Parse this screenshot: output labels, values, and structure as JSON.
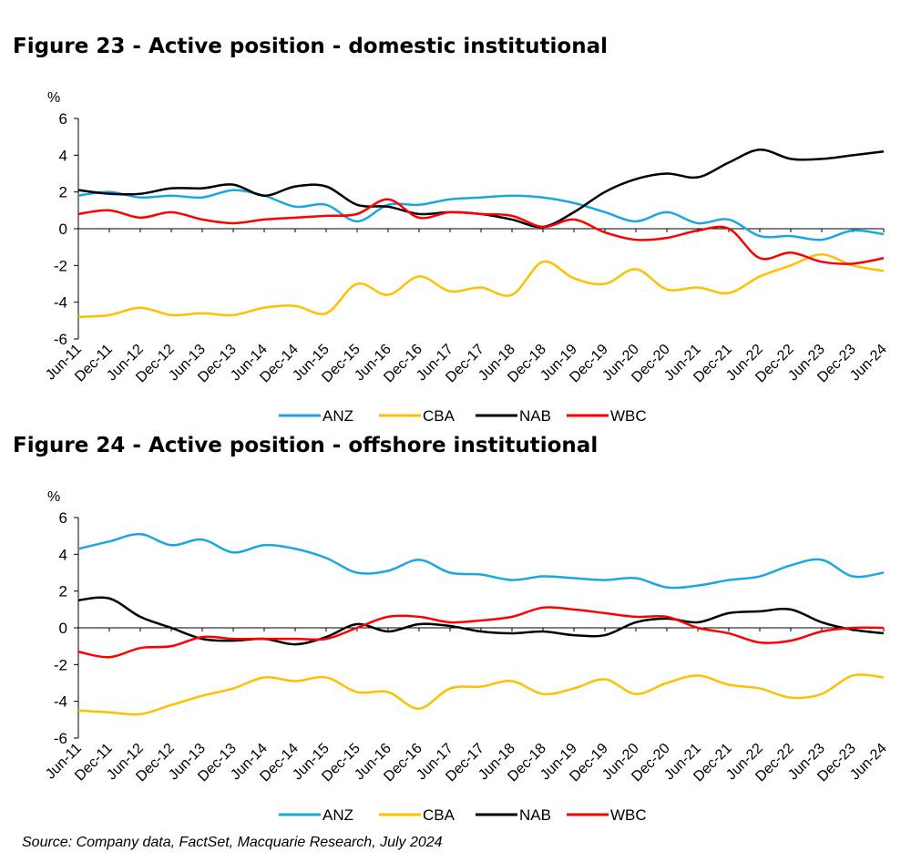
{
  "chart_data": [
    {
      "type": "line",
      "title": "Figure 23 - Active position - domestic institutional",
      "ylabel": "%",
      "ylim": [
        -6,
        6
      ],
      "yticks": [
        6,
        4,
        2,
        0,
        -2,
        -4,
        -6
      ],
      "x_labels": [
        "Jun-11",
        "Dec-11",
        "Jun-12",
        "Dec-12",
        "Jun-13",
        "Dec-13",
        "Jun-14",
        "Dec-14",
        "Jun-15",
        "Dec-15",
        "Jun-16",
        "Dec-16",
        "Jun-17",
        "Dec-17",
        "Jun-18",
        "Dec-18",
        "Jun-19",
        "Dec-19",
        "Jun-20",
        "Dec-20",
        "Jun-21",
        "Dec-21",
        "Jun-22",
        "Dec-22",
        "Jun-23",
        "Dec-23",
        "Jun-24"
      ],
      "legend_position": "bottom",
      "grid": false,
      "series": [
        {
          "name": "ANZ",
          "color": "#1aa7e0",
          "values": [
            1.8,
            2.0,
            1.7,
            1.8,
            1.7,
            2.1,
            1.8,
            1.2,
            1.3,
            0.4,
            1.3,
            1.3,
            1.6,
            1.7,
            1.8,
            1.7,
            1.4,
            0.9,
            0.4,
            0.9,
            0.3,
            0.5,
            -0.4,
            -0.4,
            -0.6,
            -0.1,
            -0.3
          ]
        },
        {
          "name": "CBA",
          "color": "#ffc000",
          "values": [
            -4.8,
            -4.7,
            -4.3,
            -4.7,
            -4.6,
            -4.7,
            -4.3,
            -4.2,
            -4.6,
            -3.0,
            -3.6,
            -2.6,
            -3.4,
            -3.2,
            -3.6,
            -1.8,
            -2.7,
            -3.0,
            -2.2,
            -3.3,
            -3.2,
            -3.5,
            -2.6,
            -2.0,
            -1.4,
            -2.0,
            -2.3
          ]
        },
        {
          "name": "NAB",
          "color": "#000000",
          "values": [
            2.1,
            1.9,
            1.9,
            2.2,
            2.2,
            2.4,
            1.8,
            2.3,
            2.3,
            1.3,
            1.2,
            0.8,
            0.9,
            0.8,
            0.5,
            0.1,
            0.9,
            2.0,
            2.7,
            3.0,
            2.8,
            3.6,
            4.3,
            3.8,
            3.8,
            4.0,
            4.2
          ]
        },
        {
          "name": "WBC",
          "color": "#ff0000",
          "values": [
            0.8,
            1.0,
            0.6,
            0.9,
            0.5,
            0.3,
            0.5,
            0.6,
            0.7,
            0.8,
            1.6,
            0.6,
            0.9,
            0.8,
            0.7,
            0.1,
            0.5,
            -0.2,
            -0.6,
            -0.5,
            -0.1,
            0.0,
            -1.6,
            -1.3,
            -1.8,
            -1.9,
            -1.6
          ]
        }
      ]
    },
    {
      "type": "line",
      "title": "Figure 24 - Active position - offshore institutional",
      "ylabel": "%",
      "ylim": [
        -6,
        6
      ],
      "yticks": [
        6,
        4,
        2,
        0,
        -2,
        -4,
        -6
      ],
      "x_labels": [
        "Jun-11",
        "Dec-11",
        "Jun-12",
        "Dec-12",
        "Jun-13",
        "Dec-13",
        "Jun-14",
        "Dec-14",
        "Jun-15",
        "Dec-15",
        "Jun-16",
        "Dec-16",
        "Jun-17",
        "Dec-17",
        "Jun-18",
        "Dec-18",
        "Jun-19",
        "Dec-19",
        "Jun-20",
        "Dec-20",
        "Jun-21",
        "Dec-21",
        "Jun-22",
        "Dec-22",
        "Jun-23",
        "Dec-23",
        "Jun-24"
      ],
      "legend_position": "bottom",
      "grid": false,
      "series": [
        {
          "name": "ANZ",
          "color": "#1aa7e0",
          "values": [
            4.3,
            4.7,
            5.1,
            4.5,
            4.8,
            4.1,
            4.5,
            4.3,
            3.8,
            3.0,
            3.1,
            3.7,
            3.0,
            2.9,
            2.6,
            2.8,
            2.7,
            2.6,
            2.7,
            2.2,
            2.3,
            2.6,
            2.8,
            3.4,
            3.7,
            2.8,
            3.0
          ]
        },
        {
          "name": "CBA",
          "color": "#ffc000",
          "values": [
            -4.5,
            -4.6,
            -4.7,
            -4.2,
            -3.7,
            -3.3,
            -2.7,
            -2.9,
            -2.7,
            -3.5,
            -3.5,
            -4.4,
            -3.3,
            -3.2,
            -2.9,
            -3.6,
            -3.3,
            -2.8,
            -3.6,
            -3.0,
            -2.6,
            -3.1,
            -3.3,
            -3.8,
            -3.6,
            -2.6,
            -2.7
          ]
        },
        {
          "name": "NAB",
          "color": "#000000",
          "values": [
            1.5,
            1.6,
            0.6,
            0.0,
            -0.6,
            -0.7,
            -0.6,
            -0.9,
            -0.5,
            0.2,
            -0.2,
            0.2,
            0.1,
            -0.2,
            -0.3,
            -0.2,
            -0.4,
            -0.4,
            0.3,
            0.5,
            0.3,
            0.8,
            0.9,
            1.0,
            0.3,
            -0.1,
            -0.3
          ]
        },
        {
          "name": "WBC",
          "color": "#ff0000",
          "values": [
            -1.3,
            -1.6,
            -1.1,
            -1.0,
            -0.5,
            -0.6,
            -0.6,
            -0.6,
            -0.6,
            0.0,
            0.6,
            0.6,
            0.3,
            0.4,
            0.6,
            1.1,
            1.0,
            0.8,
            0.6,
            0.6,
            0.0,
            -0.3,
            -0.8,
            -0.7,
            -0.2,
            0.0,
            0.0
          ]
        }
      ]
    }
  ],
  "source": "Source: Company data, FactSet, Macquarie Research, July 2024"
}
